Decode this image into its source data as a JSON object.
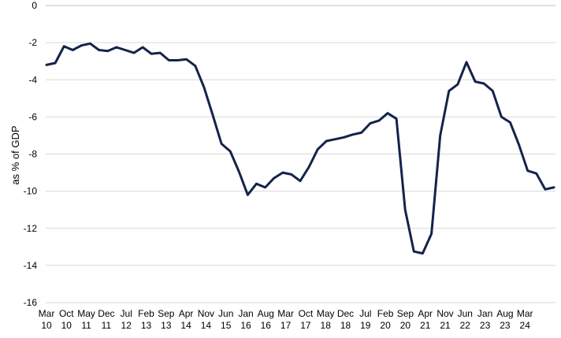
{
  "chart_data": {
    "type": "line",
    "ylabel": "as % of GDP",
    "xlabel": "",
    "title": "",
    "ylim": [
      -16,
      0
    ],
    "yticks": [
      0,
      -2,
      -4,
      -6,
      -8,
      -10,
      -12,
      -14,
      -16
    ],
    "grid": true,
    "legend": "none",
    "x_tick_labels": [
      {
        "month": "Mar",
        "year": "10"
      },
      {
        "month": "Oct",
        "year": "10"
      },
      {
        "month": "May",
        "year": "11"
      },
      {
        "month": "Dec",
        "year": "11"
      },
      {
        "month": "Jul",
        "year": "12"
      },
      {
        "month": "Feb",
        "year": "13"
      },
      {
        "month": "Sep",
        "year": "13"
      },
      {
        "month": "Apr",
        "year": "14"
      },
      {
        "month": "Nov",
        "year": "14"
      },
      {
        "month": "Jun",
        "year": "15"
      },
      {
        "month": "Jan",
        "year": "16"
      },
      {
        "month": "Aug",
        "year": "16"
      },
      {
        "month": "Mar",
        "year": "17"
      },
      {
        "month": "Oct",
        "year": "17"
      },
      {
        "month": "May",
        "year": "18"
      },
      {
        "month": "Dec",
        "year": "18"
      },
      {
        "month": "Jul",
        "year": "19"
      },
      {
        "month": "Feb",
        "year": "20"
      },
      {
        "month": "Sep",
        "year": "20"
      },
      {
        "month": "Apr",
        "year": "21"
      },
      {
        "month": "Nov",
        "year": "21"
      },
      {
        "month": "Jun",
        "year": "22"
      },
      {
        "month": "Jan",
        "year": "23"
      },
      {
        "month": "Aug",
        "year": "23"
      },
      {
        "month": "Mar",
        "year": "24"
      }
    ],
    "series": [
      {
        "color": "#14234b",
        "values": [
          -3.2,
          -3.1,
          -2.2,
          -2.4,
          -2.15,
          -2.05,
          -2.4,
          -2.45,
          -2.25,
          -2.4,
          -2.55,
          -2.25,
          -2.6,
          -2.55,
          -2.95,
          -2.95,
          -2.9,
          -3.25,
          -4.4,
          -5.9,
          -7.45,
          -7.85,
          -8.95,
          -10.2,
          -9.6,
          -9.8,
          -9.3,
          -9.0,
          -9.1,
          -9.45,
          -8.7,
          -7.75,
          -7.3,
          -7.2,
          -7.1,
          -6.95,
          -6.85,
          -6.35,
          -6.2,
          -5.8,
          -6.1,
          -11.0,
          -13.25,
          -13.35,
          -12.3,
          -7.0,
          -4.6,
          -4.25,
          -3.05,
          -4.1,
          -4.2,
          -4.6,
          -6.0,
          -6.3,
          -7.5,
          -8.9,
          -9.05,
          -9.9,
          -9.8
        ]
      }
    ]
  }
}
